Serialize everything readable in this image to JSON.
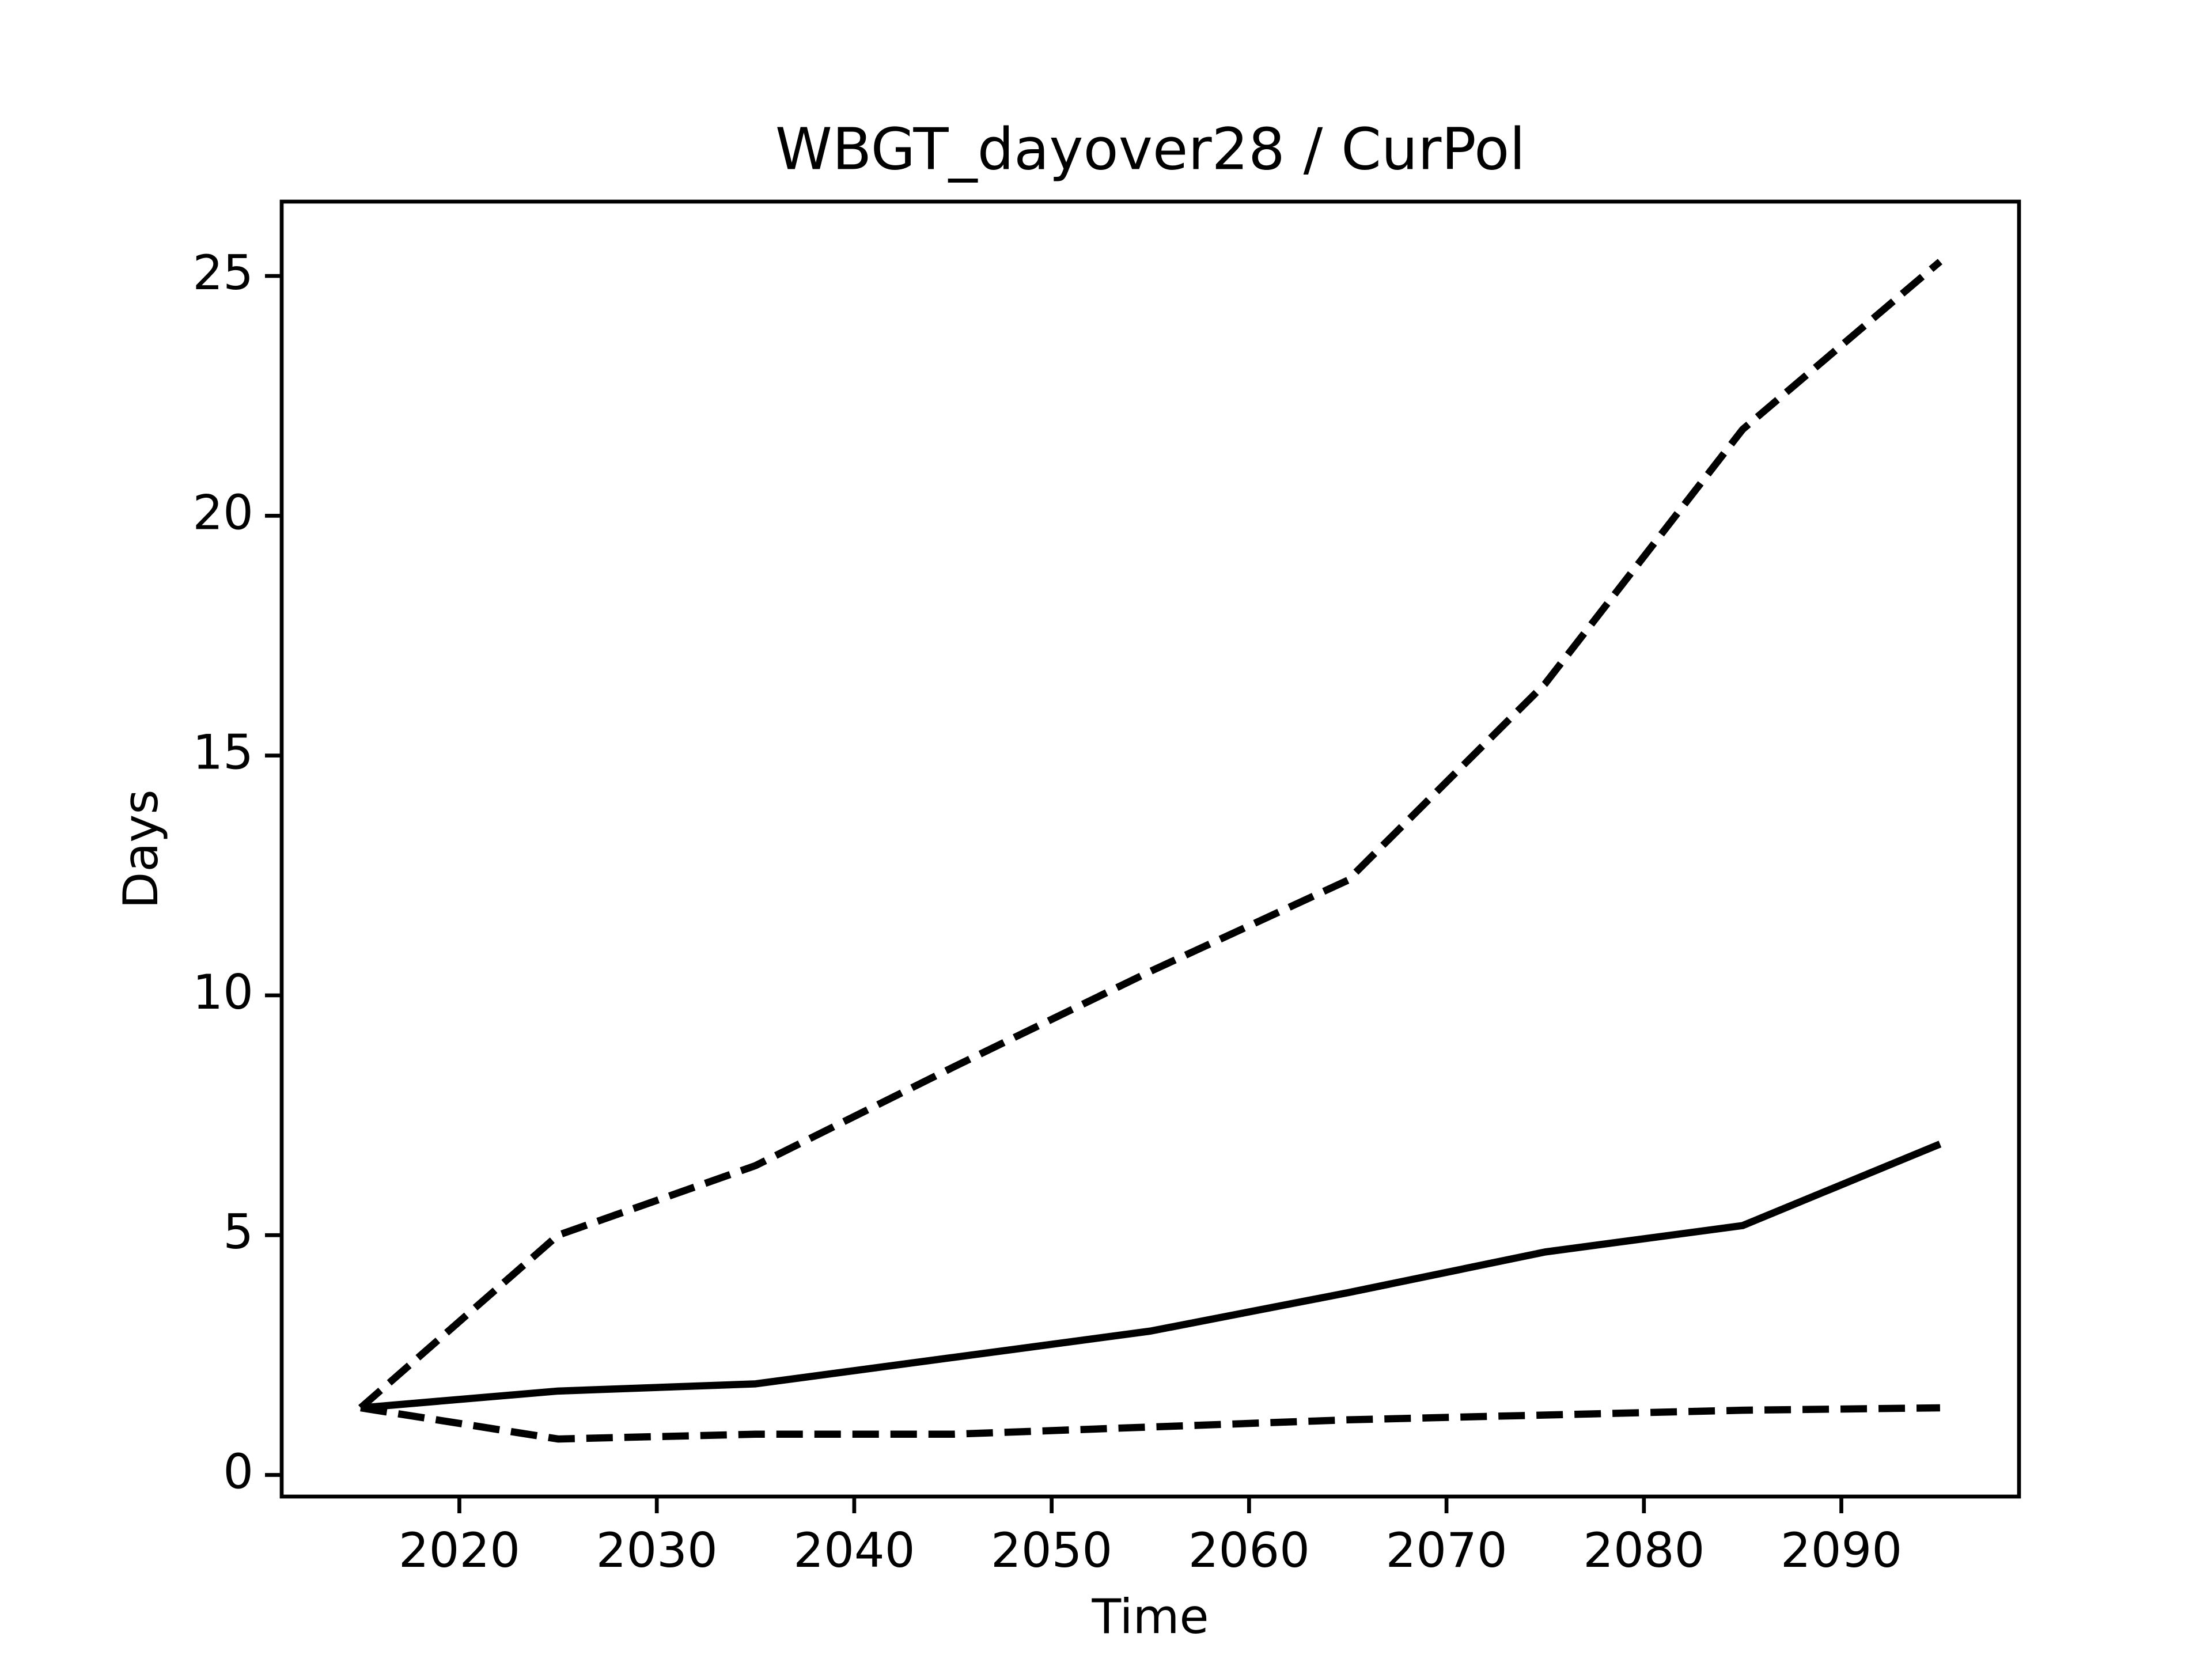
{
  "chart_data": {
    "type": "line",
    "title": "WBGT_dayover28 / CurPol",
    "xlabel": "Time",
    "ylabel": "Days",
    "x": [
      2015,
      2025,
      2035,
      2045,
      2055,
      2065,
      2075,
      2085,
      2095
    ],
    "series": [
      {
        "color": "#000000",
        "linestyle": "dashed",
        "values": [
          1.4,
          5.0,
          6.45,
          8.5,
          10.5,
          12.4,
          16.5,
          21.8,
          25.3
        ]
      },
      {
        "color": "#000000",
        "linestyle": "solid",
        "values": [
          1.4,
          1.75,
          1.9,
          2.45,
          3.0,
          3.8,
          4.65,
          5.2,
          6.9
        ]
      },
      {
        "color": "#000000",
        "linestyle": "dashed",
        "values": [
          1.4,
          0.75,
          0.85,
          0.85,
          1.0,
          1.15,
          1.25,
          1.35,
          1.4
        ]
      }
    ],
    "xlim": [
      2011,
      2099
    ],
    "ylim": [
      -0.45,
      26.55
    ],
    "xticks": [
      2020,
      2030,
      2040,
      2050,
      2060,
      2070,
      2080,
      2090
    ],
    "yticks": [
      0,
      5,
      10,
      15,
      20,
      25
    ]
  }
}
